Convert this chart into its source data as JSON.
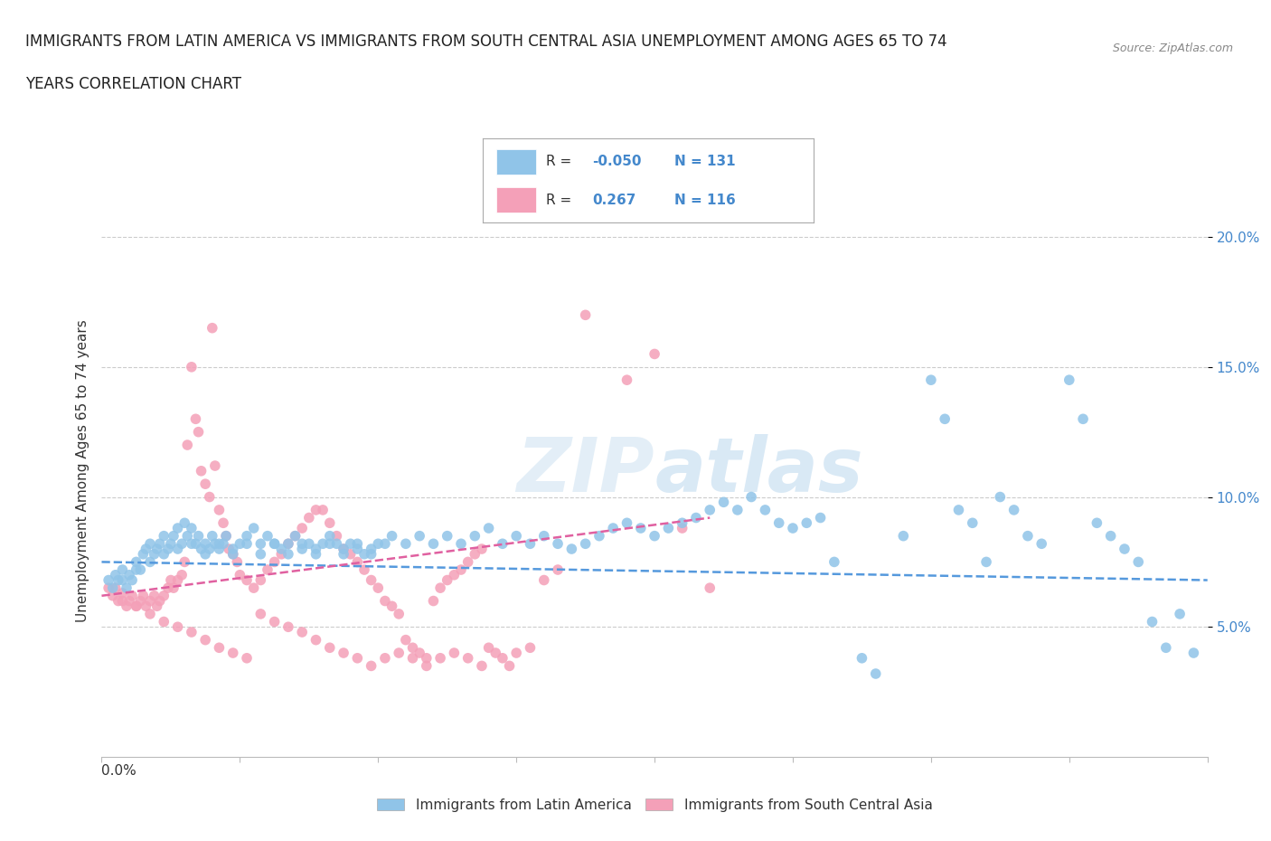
{
  "title_line1": "IMMIGRANTS FROM LATIN AMERICA VS IMMIGRANTS FROM SOUTH CENTRAL ASIA UNEMPLOYMENT AMONG AGES 65 TO 74",
  "title_line2": "YEARS CORRELATION CHART",
  "source": "Source: ZipAtlas.com",
  "ylabel": "Unemployment Among Ages 65 to 74 years",
  "ytick_labels": [
    "5.0%",
    "10.0%",
    "15.0%",
    "20.0%"
  ],
  "ytick_values": [
    0.05,
    0.1,
    0.15,
    0.2
  ],
  "xlim": [
    0.0,
    0.8
  ],
  "ylim": [
    0.0,
    0.22
  ],
  "r_blue": "-0.050",
  "n_blue": "131",
  "r_pink": "0.267",
  "n_pink": "116",
  "blue_color": "#90c4e8",
  "pink_color": "#f4a0b8",
  "blue_line_color": "#5599dd",
  "pink_line_color": "#e060a0",
  "watermark": "ZIPAtlas",
  "background_color": "#ffffff",
  "grid_color": "#cccccc",
  "blue_scatter": [
    [
      0.005,
      0.068
    ],
    [
      0.008,
      0.065
    ],
    [
      0.01,
      0.07
    ],
    [
      0.012,
      0.068
    ],
    [
      0.015,
      0.072
    ],
    [
      0.018,
      0.065
    ],
    [
      0.02,
      0.07
    ],
    [
      0.022,
      0.068
    ],
    [
      0.025,
      0.075
    ],
    [
      0.028,
      0.072
    ],
    [
      0.03,
      0.078
    ],
    [
      0.032,
      0.08
    ],
    [
      0.035,
      0.082
    ],
    [
      0.038,
      0.078
    ],
    [
      0.04,
      0.08
    ],
    [
      0.042,
      0.082
    ],
    [
      0.045,
      0.085
    ],
    [
      0.048,
      0.08
    ],
    [
      0.05,
      0.082
    ],
    [
      0.052,
      0.085
    ],
    [
      0.055,
      0.088
    ],
    [
      0.058,
      0.082
    ],
    [
      0.06,
      0.09
    ],
    [
      0.062,
      0.085
    ],
    [
      0.065,
      0.088
    ],
    [
      0.068,
      0.082
    ],
    [
      0.07,
      0.085
    ],
    [
      0.072,
      0.08
    ],
    [
      0.075,
      0.082
    ],
    [
      0.078,
      0.08
    ],
    [
      0.08,
      0.085
    ],
    [
      0.082,
      0.082
    ],
    [
      0.085,
      0.08
    ],
    [
      0.088,
      0.082
    ],
    [
      0.09,
      0.085
    ],
    [
      0.095,
      0.08
    ],
    [
      0.1,
      0.082
    ],
    [
      0.105,
      0.085
    ],
    [
      0.11,
      0.088
    ],
    [
      0.115,
      0.082
    ],
    [
      0.12,
      0.085
    ],
    [
      0.125,
      0.082
    ],
    [
      0.13,
      0.08
    ],
    [
      0.135,
      0.082
    ],
    [
      0.14,
      0.085
    ],
    [
      0.145,
      0.08
    ],
    [
      0.15,
      0.082
    ],
    [
      0.155,
      0.08
    ],
    [
      0.16,
      0.082
    ],
    [
      0.165,
      0.085
    ],
    [
      0.17,
      0.082
    ],
    [
      0.175,
      0.08
    ],
    [
      0.18,
      0.082
    ],
    [
      0.185,
      0.08
    ],
    [
      0.19,
      0.078
    ],
    [
      0.195,
      0.08
    ],
    [
      0.2,
      0.082
    ],
    [
      0.21,
      0.085
    ],
    [
      0.22,
      0.082
    ],
    [
      0.23,
      0.085
    ],
    [
      0.24,
      0.082
    ],
    [
      0.25,
      0.085
    ],
    [
      0.26,
      0.082
    ],
    [
      0.27,
      0.085
    ],
    [
      0.28,
      0.088
    ],
    [
      0.29,
      0.082
    ],
    [
      0.3,
      0.085
    ],
    [
      0.31,
      0.082
    ],
    [
      0.32,
      0.085
    ],
    [
      0.33,
      0.082
    ],
    [
      0.34,
      0.08
    ],
    [
      0.35,
      0.082
    ],
    [
      0.36,
      0.085
    ],
    [
      0.37,
      0.088
    ],
    [
      0.38,
      0.09
    ],
    [
      0.39,
      0.088
    ],
    [
      0.4,
      0.085
    ],
    [
      0.41,
      0.088
    ],
    [
      0.42,
      0.09
    ],
    [
      0.43,
      0.092
    ],
    [
      0.44,
      0.095
    ],
    [
      0.45,
      0.098
    ],
    [
      0.46,
      0.095
    ],
    [
      0.47,
      0.1
    ],
    [
      0.48,
      0.095
    ],
    [
      0.49,
      0.09
    ],
    [
      0.5,
      0.088
    ],
    [
      0.51,
      0.09
    ],
    [
      0.52,
      0.092
    ],
    [
      0.53,
      0.075
    ],
    [
      0.55,
      0.038
    ],
    [
      0.56,
      0.032
    ],
    [
      0.58,
      0.085
    ],
    [
      0.6,
      0.145
    ],
    [
      0.61,
      0.13
    ],
    [
      0.62,
      0.095
    ],
    [
      0.63,
      0.09
    ],
    [
      0.64,
      0.075
    ],
    [
      0.65,
      0.1
    ],
    [
      0.66,
      0.095
    ],
    [
      0.67,
      0.085
    ],
    [
      0.68,
      0.082
    ],
    [
      0.7,
      0.145
    ],
    [
      0.71,
      0.13
    ],
    [
      0.72,
      0.09
    ],
    [
      0.73,
      0.085
    ],
    [
      0.74,
      0.08
    ],
    [
      0.75,
      0.075
    ],
    [
      0.76,
      0.052
    ],
    [
      0.77,
      0.042
    ],
    [
      0.78,
      0.055
    ],
    [
      0.79,
      0.04
    ],
    [
      0.015,
      0.068
    ],
    [
      0.025,
      0.072
    ],
    [
      0.035,
      0.075
    ],
    [
      0.045,
      0.078
    ],
    [
      0.055,
      0.08
    ],
    [
      0.065,
      0.082
    ],
    [
      0.075,
      0.078
    ],
    [
      0.085,
      0.082
    ],
    [
      0.095,
      0.078
    ],
    [
      0.105,
      0.082
    ],
    [
      0.115,
      0.078
    ],
    [
      0.125,
      0.082
    ],
    [
      0.135,
      0.078
    ],
    [
      0.145,
      0.082
    ],
    [
      0.155,
      0.078
    ],
    [
      0.165,
      0.082
    ],
    [
      0.175,
      0.078
    ],
    [
      0.185,
      0.082
    ],
    [
      0.195,
      0.078
    ],
    [
      0.205,
      0.082
    ]
  ],
  "pink_scatter": [
    [
      0.005,
      0.065
    ],
    [
      0.008,
      0.062
    ],
    [
      0.01,
      0.065
    ],
    [
      0.012,
      0.06
    ],
    [
      0.015,
      0.063
    ],
    [
      0.018,
      0.058
    ],
    [
      0.02,
      0.06
    ],
    [
      0.022,
      0.062
    ],
    [
      0.025,
      0.058
    ],
    [
      0.028,
      0.06
    ],
    [
      0.03,
      0.062
    ],
    [
      0.032,
      0.058
    ],
    [
      0.035,
      0.06
    ],
    [
      0.038,
      0.062
    ],
    [
      0.04,
      0.058
    ],
    [
      0.042,
      0.06
    ],
    [
      0.045,
      0.062
    ],
    [
      0.048,
      0.065
    ],
    [
      0.05,
      0.068
    ],
    [
      0.052,
      0.065
    ],
    [
      0.055,
      0.068
    ],
    [
      0.058,
      0.07
    ],
    [
      0.06,
      0.075
    ],
    [
      0.062,
      0.12
    ],
    [
      0.065,
      0.15
    ],
    [
      0.068,
      0.13
    ],
    [
      0.07,
      0.125
    ],
    [
      0.072,
      0.11
    ],
    [
      0.075,
      0.105
    ],
    [
      0.078,
      0.1
    ],
    [
      0.08,
      0.165
    ],
    [
      0.082,
      0.112
    ],
    [
      0.085,
      0.095
    ],
    [
      0.088,
      0.09
    ],
    [
      0.09,
      0.085
    ],
    [
      0.092,
      0.08
    ],
    [
      0.095,
      0.078
    ],
    [
      0.098,
      0.075
    ],
    [
      0.1,
      0.07
    ],
    [
      0.105,
      0.068
    ],
    [
      0.11,
      0.065
    ],
    [
      0.115,
      0.068
    ],
    [
      0.12,
      0.072
    ],
    [
      0.125,
      0.075
    ],
    [
      0.13,
      0.078
    ],
    [
      0.135,
      0.082
    ],
    [
      0.14,
      0.085
    ],
    [
      0.145,
      0.088
    ],
    [
      0.15,
      0.092
    ],
    [
      0.155,
      0.095
    ],
    [
      0.16,
      0.095
    ],
    [
      0.165,
      0.09
    ],
    [
      0.17,
      0.085
    ],
    [
      0.175,
      0.08
    ],
    [
      0.18,
      0.078
    ],
    [
      0.185,
      0.075
    ],
    [
      0.19,
      0.072
    ],
    [
      0.195,
      0.068
    ],
    [
      0.2,
      0.065
    ],
    [
      0.205,
      0.06
    ],
    [
      0.21,
      0.058
    ],
    [
      0.215,
      0.055
    ],
    [
      0.22,
      0.045
    ],
    [
      0.225,
      0.042
    ],
    [
      0.23,
      0.04
    ],
    [
      0.235,
      0.038
    ],
    [
      0.24,
      0.06
    ],
    [
      0.245,
      0.065
    ],
    [
      0.25,
      0.068
    ],
    [
      0.255,
      0.07
    ],
    [
      0.26,
      0.072
    ],
    [
      0.265,
      0.075
    ],
    [
      0.27,
      0.078
    ],
    [
      0.275,
      0.08
    ],
    [
      0.28,
      0.042
    ],
    [
      0.285,
      0.04
    ],
    [
      0.29,
      0.038
    ],
    [
      0.295,
      0.035
    ],
    [
      0.3,
      0.04
    ],
    [
      0.31,
      0.042
    ],
    [
      0.32,
      0.068
    ],
    [
      0.33,
      0.072
    ],
    [
      0.35,
      0.17
    ],
    [
      0.38,
      0.145
    ],
    [
      0.4,
      0.155
    ],
    [
      0.42,
      0.088
    ],
    [
      0.44,
      0.065
    ],
    [
      0.015,
      0.06
    ],
    [
      0.025,
      0.058
    ],
    [
      0.035,
      0.055
    ],
    [
      0.045,
      0.052
    ],
    [
      0.055,
      0.05
    ],
    [
      0.065,
      0.048
    ],
    [
      0.075,
      0.045
    ],
    [
      0.085,
      0.042
    ],
    [
      0.095,
      0.04
    ],
    [
      0.105,
      0.038
    ],
    [
      0.115,
      0.055
    ],
    [
      0.125,
      0.052
    ],
    [
      0.135,
      0.05
    ],
    [
      0.145,
      0.048
    ],
    [
      0.155,
      0.045
    ],
    [
      0.165,
      0.042
    ],
    [
      0.175,
      0.04
    ],
    [
      0.185,
      0.038
    ],
    [
      0.195,
      0.035
    ],
    [
      0.205,
      0.038
    ],
    [
      0.215,
      0.04
    ],
    [
      0.225,
      0.038
    ],
    [
      0.235,
      0.035
    ],
    [
      0.245,
      0.038
    ],
    [
      0.255,
      0.04
    ],
    [
      0.265,
      0.038
    ],
    [
      0.275,
      0.035
    ]
  ],
  "blue_line_x": [
    0.0,
    0.8
  ],
  "blue_line_y": [
    0.075,
    0.068
  ],
  "pink_line_x": [
    0.0,
    0.44
  ],
  "pink_line_y": [
    0.062,
    0.092
  ]
}
